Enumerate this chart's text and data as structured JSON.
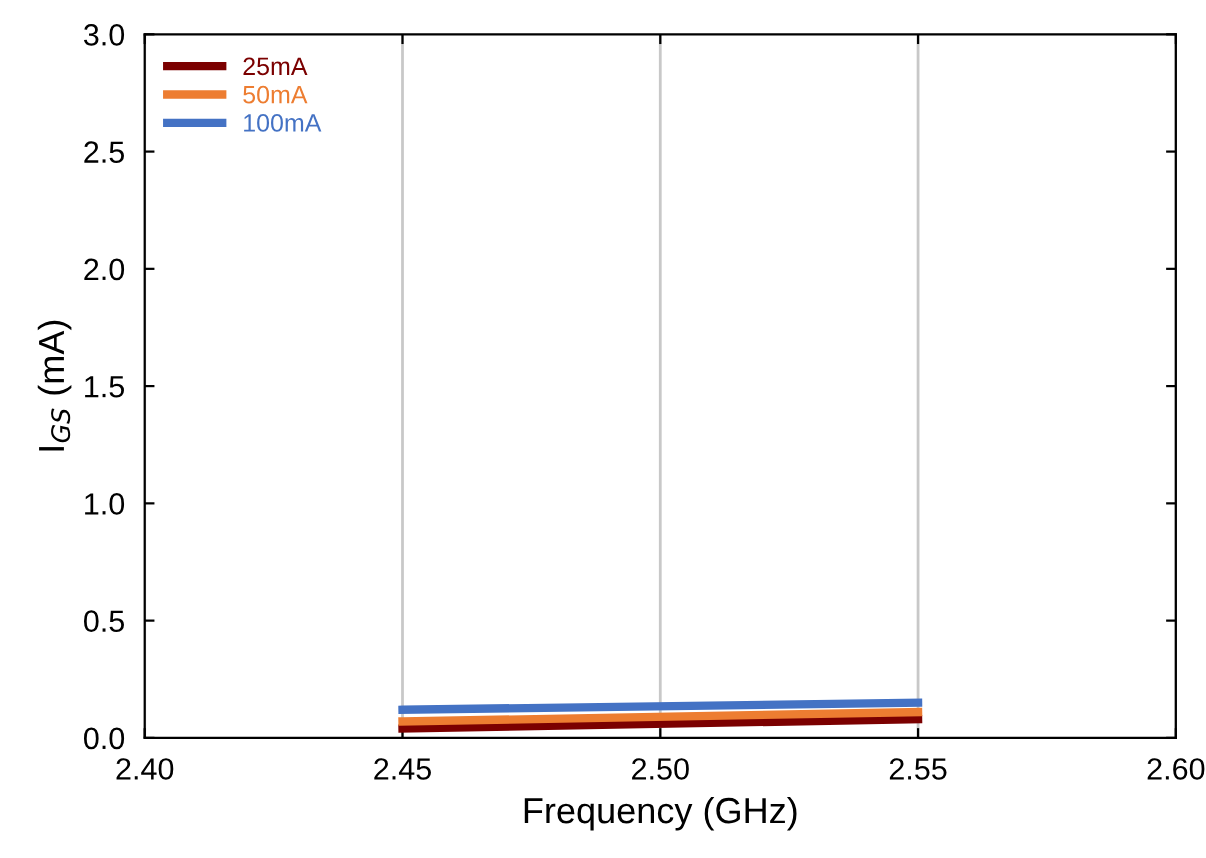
{
  "chart_data": {
    "type": "line",
    "xlabel": "Frequency (GHz)",
    "ylabel": "I$_{GS}$ (mA)",
    "x": [
      2.45,
      2.55
    ],
    "series": [
      {
        "name": "25mA",
        "color": "#7b0000",
        "values": [
          0.04,
          0.08
        ]
      },
      {
        "name": "50mA",
        "color": "#ed7d31",
        "values": [
          0.07,
          0.11
        ]
      },
      {
        "name": "100mA",
        "color": "#4472c4",
        "values": [
          0.12,
          0.15
        ]
      }
    ],
    "xlim": [
      2.4,
      2.6
    ],
    "xticks": [
      {
        "value": 2.4,
        "label": "2.40"
      },
      2.45,
      {
        "value": 2.5,
        "label": "2.50"
      },
      2.55,
      {
        "value": 2.6,
        "label": "2.60"
      }
    ],
    "ylim": [
      0,
      3.0
    ],
    "yticks": [
      {
        "value": 0,
        "label": "0.0"
      },
      0.5,
      {
        "value": 1,
        "label": "1.0"
      },
      1.5,
      {
        "value": 2,
        "label": "2.0"
      },
      2.5,
      {
        "value": 3,
        "label": "3.0"
      }
    ],
    "grid": "x",
    "legend": "top left",
    "line_style": "solid",
    "marker": "none"
  }
}
